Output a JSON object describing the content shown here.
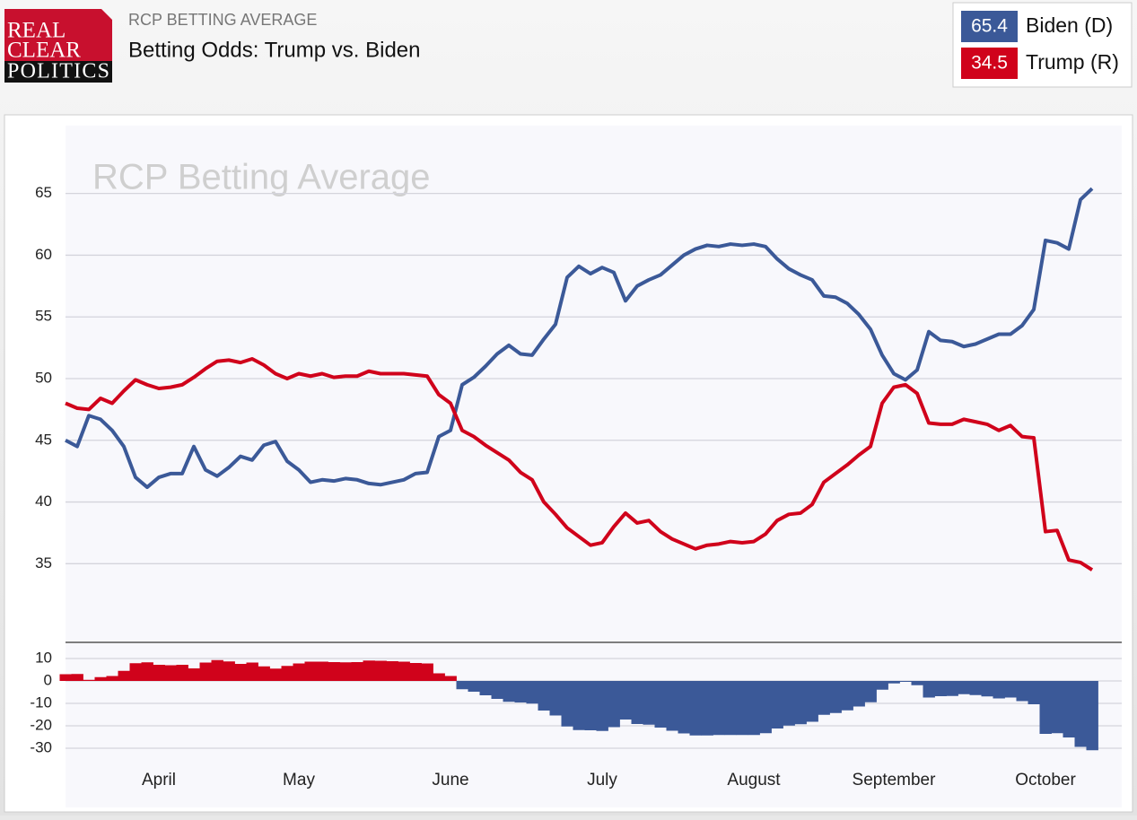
{
  "logo": [
    "REAL",
    "CLEAR",
    "POLITICS"
  ],
  "chart_data": [
    {
      "type": "line",
      "subtitle": "RCP BETTING AVERAGE",
      "title": "Betting Odds: Trump vs. Biden",
      "watermark": "RCP Betting Average",
      "categories": [
        null,
        null,
        null,
        null,
        null,
        null,
        null,
        null,
        "April",
        null,
        null,
        null,
        null,
        null,
        null,
        null,
        null,
        null,
        null,
        null,
        "May",
        null,
        null,
        null,
        null,
        null,
        null,
        null,
        null,
        null,
        null,
        null,
        null,
        "June",
        null,
        null,
        null,
        null,
        null,
        null,
        null,
        null,
        null,
        null,
        null,
        null,
        "July",
        null,
        null,
        null,
        null,
        null,
        null,
        null,
        null,
        null,
        null,
        null,
        null,
        "August",
        null,
        null,
        null,
        null,
        null,
        null,
        null,
        null,
        null,
        null,
        null,
        "September",
        null,
        null,
        null,
        null,
        null,
        null,
        null,
        null,
        null,
        null,
        null,
        null,
        "October",
        null,
        null,
        null,
        null
      ],
      "series": [
        {
          "name": "Biden (D)",
          "color": "#3b5998",
          "values": [
            45,
            44.5,
            47,
            46.7,
            45.8,
            44.5,
            42,
            41.2,
            42,
            42.3,
            42.3,
            44.5,
            42.6,
            42.1,
            42.8,
            43.7,
            43.4,
            44.6,
            44.9,
            43.3,
            42.6,
            41.6,
            41.8,
            41.7,
            41.9,
            41.8,
            41.5,
            41.4,
            41.6,
            41.8,
            42.3,
            42.4,
            45.3,
            45.8,
            49.5,
            50.1,
            51,
            52,
            52.7,
            52,
            51.9,
            53.2,
            54.4,
            58.2,
            59.1,
            58.5,
            59,
            58.6,
            56.3,
            57.5,
            58,
            58.4,
            59.2,
            60,
            60.5,
            60.8,
            60.7,
            60.9,
            60.8,
            60.9,
            60.7,
            59.7,
            58.9,
            58.4,
            58,
            56.7,
            56.6,
            56.1,
            55.2,
            54,
            51.9,
            50.4,
            49.9,
            50.7,
            53.8,
            53.1,
            53,
            52.6,
            52.8,
            53.2,
            53.6,
            53.6,
            54.3,
            55.6,
            61.2,
            61,
            60.5,
            64.5,
            65.4
          ]
        },
        {
          "name": "Trump (R)",
          "color": "#d0021b",
          "values": [
            48,
            47.6,
            47.5,
            48.4,
            48,
            49,
            49.9,
            49.5,
            49.2,
            49.3,
            49.5,
            50.1,
            50.8,
            51.4,
            51.5,
            51.3,
            51.6,
            51.1,
            50.4,
            50,
            50.4,
            50.2,
            50.4,
            50.1,
            50.2,
            50.2,
            50.6,
            50.4,
            50.4,
            50.4,
            50.3,
            50.2,
            48.7,
            48,
            45.8,
            45.3,
            44.6,
            44,
            43.4,
            42.4,
            41.8,
            40,
            39,
            37.9,
            37.2,
            36.5,
            36.7,
            38,
            39.1,
            38.3,
            38.5,
            37.6,
            37,
            36.6,
            36.2,
            36.5,
            36.6,
            36.8,
            36.7,
            36.8,
            37.4,
            38.5,
            39,
            39.1,
            39.8,
            41.6,
            42.3,
            43,
            43.8,
            44.5,
            48,
            49.3,
            49.5,
            48.8,
            46.4,
            46.3,
            46.3,
            46.7,
            46.5,
            46.3,
            45.8,
            46.2,
            45.3,
            45.2,
            37.6,
            37.7,
            35.3,
            35.1,
            34.5
          ]
        }
      ],
      "ylim": [
        28.7,
        70.5
      ],
      "yticks": [
        35,
        40,
        45,
        50,
        55,
        60,
        65
      ],
      "grid": true
    },
    {
      "type": "spread",
      "positive_color": "#d0021b",
      "negative_color": "#3b5998",
      "ylim": [
        -30.4,
        17.2
      ],
      "yticks": [
        10,
        0,
        -10,
        -20,
        -30
      ],
      "grid": true
    }
  ]
}
